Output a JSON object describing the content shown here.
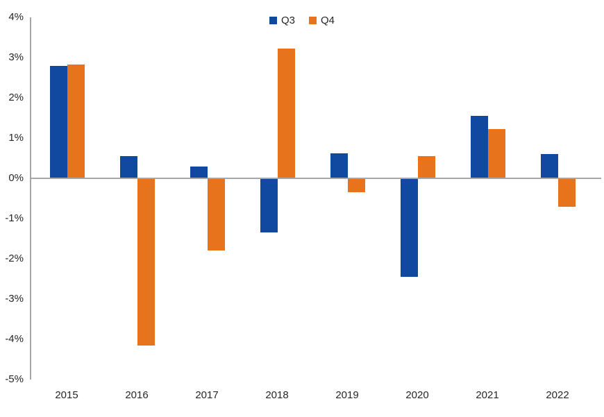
{
  "chart_data": {
    "type": "bar",
    "title": "",
    "xlabel": "",
    "ylabel": "",
    "unit": "%",
    "categories": [
      "2015",
      "2016",
      "2017",
      "2018",
      "2019",
      "2020",
      "2021",
      "2022"
    ],
    "series": [
      {
        "name": "Q3",
        "color": "#1249a0",
        "values": [
          2.8,
          0.55,
          0.3,
          -1.35,
          0.62,
          -2.45,
          1.55,
          0.6
        ]
      },
      {
        "name": "Q4",
        "color": "#e7731d",
        "values": [
          2.82,
          -4.15,
          -1.8,
          3.22,
          -0.35,
          0.55,
          1.22,
          -0.7
        ]
      }
    ],
    "ylim": [
      -5,
      4
    ],
    "y_ticks": [
      4,
      3,
      2,
      1,
      0,
      -1,
      -2,
      -3,
      -4,
      -5
    ],
    "y_tick_labels": [
      "4%",
      "3%",
      "2%",
      "1%",
      "0%",
      "-1%",
      "-2%",
      "-3%",
      "-4%",
      "-5%"
    ],
    "legend_position": "top-center",
    "grid": "zero line only",
    "colors": {
      "axis": "#a6a6a6",
      "text": "#262626",
      "background": "#ffffff"
    }
  }
}
